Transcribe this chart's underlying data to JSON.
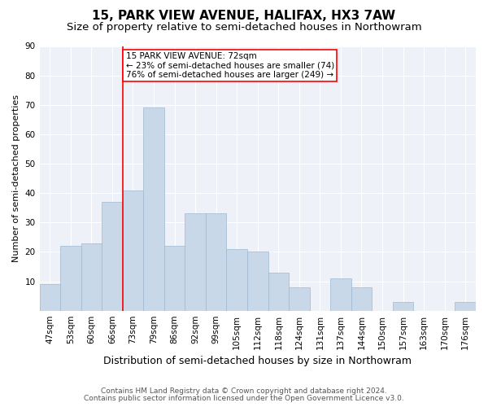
{
  "title": "15, PARK VIEW AVENUE, HALIFAX, HX3 7AW",
  "subtitle": "Size of property relative to semi-detached houses in Northowram",
  "xlabel": "Distribution of semi-detached houses by size in Northowram",
  "ylabel": "Number of semi-detached properties",
  "footnote1": "Contains HM Land Registry data © Crown copyright and database right 2024.",
  "footnote2": "Contains public sector information licensed under the Open Government Licence v3.0.",
  "categories": [
    "47sqm",
    "53sqm",
    "60sqm",
    "66sqm",
    "73sqm",
    "79sqm",
    "86sqm",
    "92sqm",
    "99sqm",
    "105sqm",
    "112sqm",
    "118sqm",
    "124sqm",
    "131sqm",
    "137sqm",
    "144sqm",
    "150sqm",
    "157sqm",
    "163sqm",
    "170sqm",
    "176sqm"
  ],
  "values": [
    9,
    22,
    23,
    37,
    41,
    69,
    22,
    33,
    33,
    21,
    20,
    13,
    8,
    0,
    11,
    8,
    0,
    3,
    0,
    0,
    3
  ],
  "bar_color": "#c8d8e8",
  "bar_edge_color": "#a0b8d0",
  "property_line_index": 4,
  "property_line_color": "red",
  "annotation_line1": "15 PARK VIEW AVENUE: 72sqm",
  "annotation_line2": "← 23% of semi-detached houses are smaller (74)",
  "annotation_line3": "76% of semi-detached houses are larger (249) →",
  "annotation_box_color": "red",
  "annotation_bg": "white",
  "ylim": [
    0,
    90
  ],
  "yticks": [
    0,
    10,
    20,
    30,
    40,
    50,
    60,
    70,
    80,
    90
  ],
  "background_color": "#eef2f8",
  "grid_color": "white",
  "title_fontsize": 11,
  "subtitle_fontsize": 9.5,
  "ylabel_fontsize": 8,
  "xlabel_fontsize": 9,
  "tick_fontsize": 7.5,
  "annotation_fontsize": 7.5,
  "footnote_fontsize": 6.5
}
